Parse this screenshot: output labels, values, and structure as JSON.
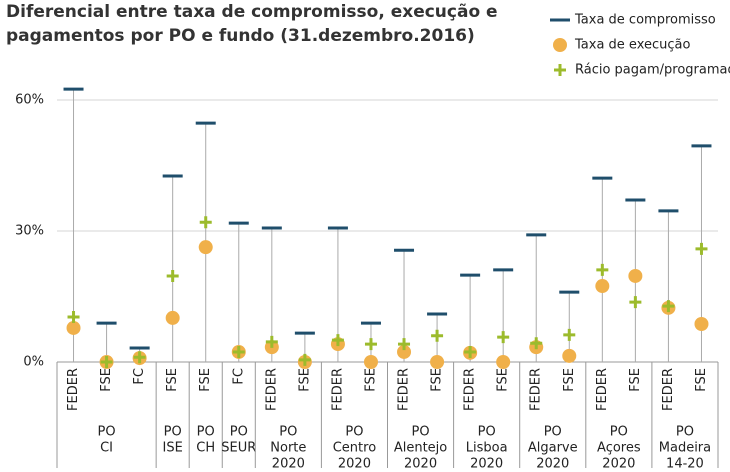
{
  "chart_data": {
    "type": "dot",
    "title": [
      "Diferencial entre taxa de compromisso, execução e",
      "pagamentos por PO e fundo (31.dezembro.2016)"
    ],
    "groups": [
      {
        "label": [
          "PO",
          "CI"
        ],
        "categories": [
          "FEDER",
          "FSE",
          "FC"
        ]
      },
      {
        "label": [
          "PO",
          "ISE"
        ],
        "categories": [
          "FSE"
        ]
      },
      {
        "label": [
          "PO",
          "CH"
        ],
        "categories": [
          "FSE"
        ]
      },
      {
        "label": [
          "PO",
          "SEUR"
        ],
        "categories": [
          "FC"
        ]
      },
      {
        "label": [
          "PO",
          "Norte",
          "2020"
        ],
        "categories": [
          "FEDER",
          "FSE"
        ]
      },
      {
        "label": [
          "PO",
          "Centro",
          "2020"
        ],
        "categories": [
          "FEDER",
          "FSE"
        ]
      },
      {
        "label": [
          "PO",
          "Alentejo",
          "2020"
        ],
        "categories": [
          "FEDER",
          "FSE"
        ]
      },
      {
        "label": [
          "PO",
          "Lisboa",
          "2020"
        ],
        "categories": [
          "FEDER",
          "FSE"
        ]
      },
      {
        "label": [
          "PO",
          "Algarve",
          "2020"
        ],
        "categories": [
          "FEDER",
          "FSE"
        ]
      },
      {
        "label": [
          "PO",
          "Açores",
          "2020"
        ],
        "categories": [
          "FEDER",
          "FSE"
        ]
      },
      {
        "label": [
          "PO",
          "Madeira",
          "14-20"
        ],
        "categories": [
          "FEDER",
          "FSE"
        ]
      }
    ],
    "series": [
      {
        "name": "Taxa de compromisso",
        "color": "#1f4e6b",
        "marker": "dash",
        "values": [
          62.5,
          8.9,
          3.2,
          42.6,
          54.7,
          31.8,
          30.7,
          6.6,
          30.7,
          8.9,
          25.6,
          11,
          19.9,
          21.1,
          29.1,
          16,
          42.1,
          37.1,
          34.6,
          49.5
        ]
      },
      {
        "name": "Taxa de execução",
        "color": "#f0b04a",
        "marker": "circle",
        "values": [
          7.8,
          0,
          0.9,
          10.1,
          26.3,
          2.3,
          3.4,
          0,
          4.1,
          0,
          2.3,
          0,
          2.1,
          0,
          3.4,
          1.4,
          17.4,
          19.7,
          12.4,
          8.7
        ]
      },
      {
        "name": "Rácio pagam/programado",
        "color": "#9cbb2c",
        "marker": "plus",
        "values": [
          10.3,
          0,
          1.1,
          19.7,
          32,
          2.3,
          4.6,
          0.5,
          5,
          4.1,
          4.1,
          6,
          2.3,
          5.7,
          4.3,
          6.2,
          21.1,
          13.7,
          12.8,
          25.9
        ]
      }
    ],
    "ylim": [
      0,
      65
    ],
    "yticks": [
      {
        "value": 0,
        "label": "0%"
      },
      {
        "value": 30,
        "label": "30%"
      },
      {
        "value": 60,
        "label": "60%"
      }
    ],
    "grid": true,
    "legend": "top-right"
  }
}
